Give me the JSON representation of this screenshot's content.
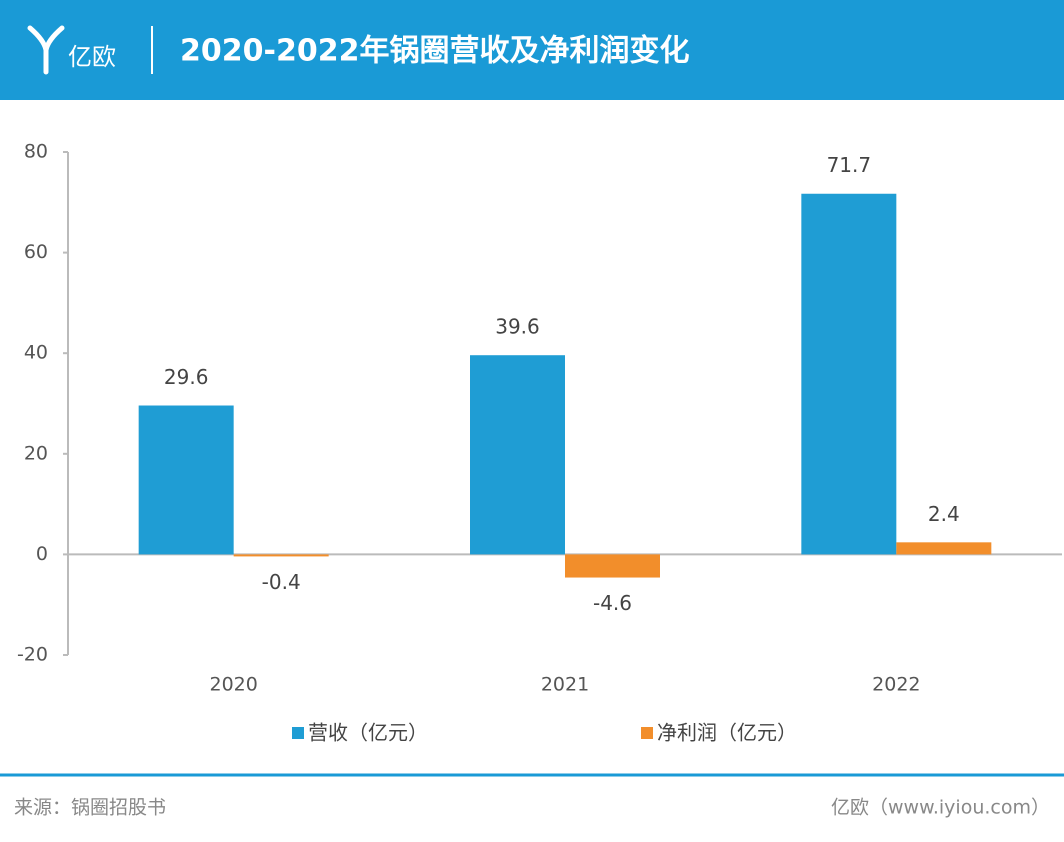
{
  "logo": "亿欧",
  "chart_data": {
    "type": "bar",
    "title": "2020-2022年锅圈营收及净利润变化",
    "categories": [
      "2020",
      "2021",
      "2022"
    ],
    "series": [
      {
        "name": "营收（亿元）",
        "color": "#1f9dd4",
        "values": [
          29.6,
          39.6,
          71.7
        ]
      },
      {
        "name": "净利润（亿元）",
        "color": "#f28e2b",
        "values": [
          -0.4,
          -4.6,
          2.4
        ]
      }
    ],
    "ylim": [
      -20,
      80
    ],
    "yticks": [
      -20,
      0,
      20,
      40,
      60,
      80
    ],
    "grid": false
  },
  "footer": {
    "source": "来源：锅圈招股书",
    "site": "亿欧（www.iyiou.com）"
  }
}
